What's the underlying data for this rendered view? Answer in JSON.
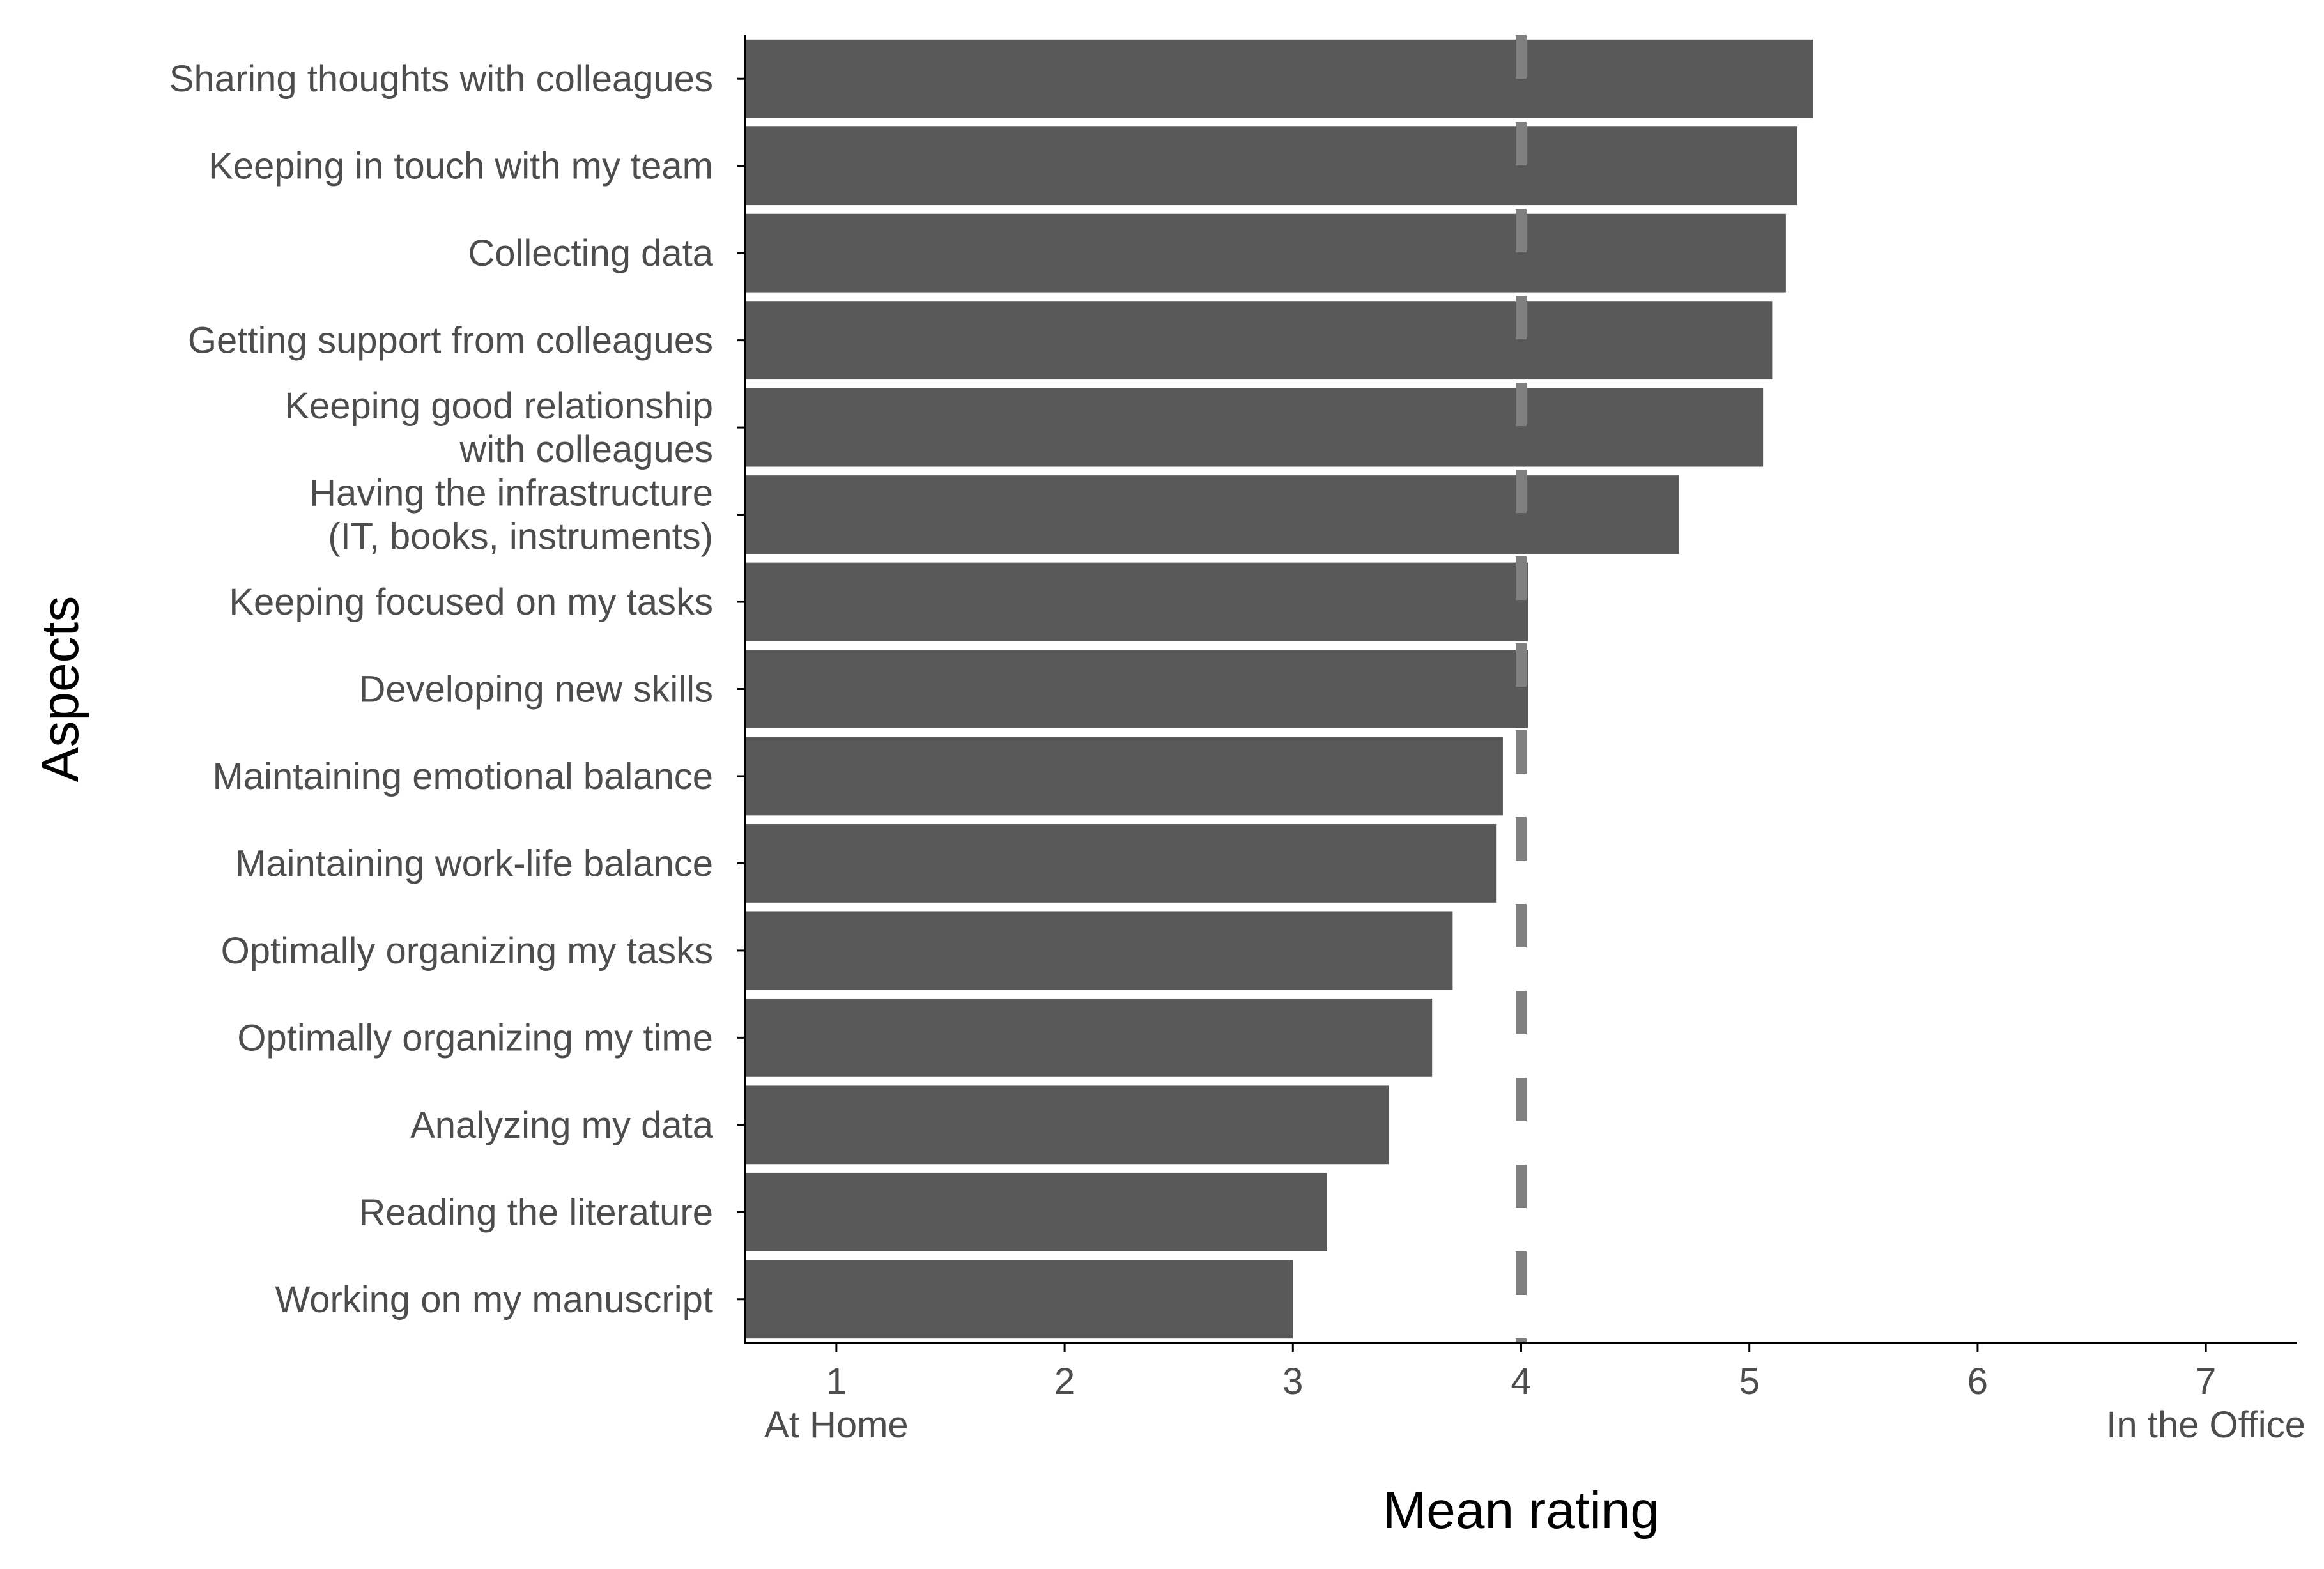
{
  "chart_data": {
    "type": "bar",
    "orientation": "horizontal",
    "xlabel": "Mean rating",
    "ylabel": "Aspects",
    "xlim": [
      0.6,
      7.4
    ],
    "x_ticks": [
      1,
      2,
      3,
      4,
      5,
      6,
      7
    ],
    "x_anchor_labels": {
      "low": "At Home",
      "high": "In the Office"
    },
    "reference_line": 4,
    "grid": false,
    "bar_color": "#595959",
    "reference_line_color": "#808080",
    "categories": [
      [
        "Sharing thoughts with colleagues"
      ],
      [
        "Keeping in touch with my team"
      ],
      [
        "Collecting data"
      ],
      [
        "Getting support from colleagues"
      ],
      [
        "Keeping good relationship",
        "with colleagues"
      ],
      [
        "Having the infrastructure",
        "(IT, books, instruments)"
      ],
      [
        "Keeping focused on my tasks"
      ],
      [
        "Developing new skills"
      ],
      [
        "Maintaining emotional balance"
      ],
      [
        "Maintaining work-life balance"
      ],
      [
        "Optimally organizing my tasks"
      ],
      [
        "Optimally organizing my time"
      ],
      [
        "Analyzing my data"
      ],
      [
        "Reading the literature"
      ],
      [
        "Working on my manuscript"
      ]
    ],
    "values": [
      5.28,
      5.21,
      5.16,
      5.1,
      5.06,
      4.69,
      4.03,
      4.03,
      3.92,
      3.89,
      3.7,
      3.61,
      3.42,
      3.15,
      3.0
    ]
  }
}
